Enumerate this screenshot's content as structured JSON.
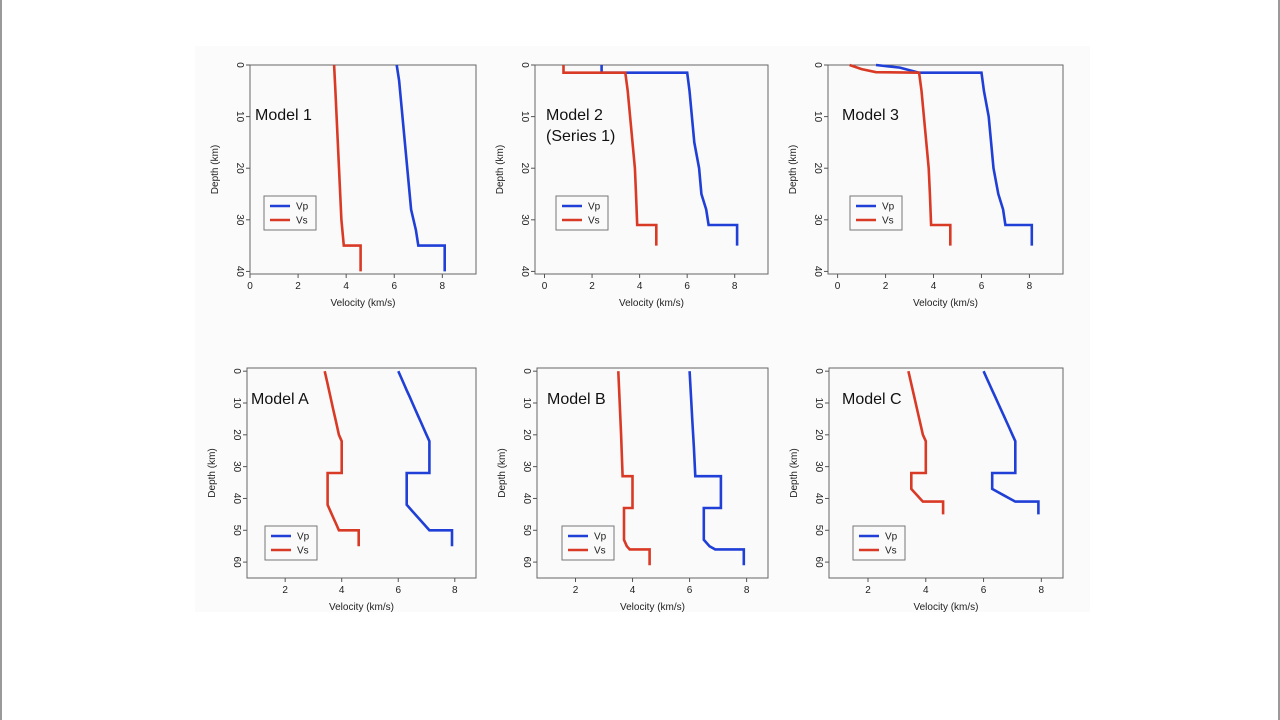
{
  "chart_data": [
    {
      "type": "line",
      "title": [
        "Model 1"
      ],
      "xlabel": "Velocity (km/s)",
      "ylabel": "Depth (km)",
      "xlim": [
        0,
        9.4
      ],
      "ylim": [
        0,
        40.5
      ],
      "xticks": [
        "0",
        "2",
        "4",
        "6",
        "8"
      ],
      "yticks": [
        "0",
        "10",
        "20",
        "30",
        "40"
      ],
      "legend": [
        "Vp",
        "Vs"
      ],
      "series": [
        {
          "name": "Vp",
          "color": "#1f3fd6",
          "points": [
            [
              6.1,
              0
            ],
            [
              6.2,
              3
            ],
            [
              6.3,
              8
            ],
            [
              6.4,
              13
            ],
            [
              6.5,
              18
            ],
            [
              6.6,
              23
            ],
            [
              6.7,
              28
            ],
            [
              6.9,
              32
            ],
            [
              7.0,
              35
            ],
            [
              8.1,
              35
            ],
            [
              8.1,
              40
            ]
          ]
        },
        {
          "name": "Vs",
          "color": "#d93a26",
          "points": [
            [
              3.5,
              0
            ],
            [
              3.55,
              5
            ],
            [
              3.6,
              10
            ],
            [
              3.65,
              15
            ],
            [
              3.7,
              20
            ],
            [
              3.75,
              25
            ],
            [
              3.8,
              30
            ],
            [
              3.9,
              35
            ],
            [
              4.6,
              35
            ],
            [
              4.6,
              40
            ]
          ]
        }
      ]
    },
    {
      "type": "line",
      "title": [
        "Model 2",
        "(Series 1)"
      ],
      "xlabel": "Velocity (km/s)",
      "ylabel": "Depth (km)",
      "xlim": [
        -0.4,
        9.4
      ],
      "ylim": [
        0,
        40.5
      ],
      "xticks": [
        "0",
        "2",
        "4",
        "6",
        "8"
      ],
      "yticks": [
        "0",
        "10",
        "20",
        "30",
        "40"
      ],
      "legend": [
        "Vp",
        "Vs"
      ],
      "series": [
        {
          "name": "Vp",
          "color": "#1f3fd6",
          "points": [
            [
              2.4,
              0
            ],
            [
              2.4,
              1.5
            ],
            [
              6.0,
              1.5
            ],
            [
              6.1,
              5
            ],
            [
              6.2,
              10
            ],
            [
              6.3,
              15
            ],
            [
              6.5,
              20
            ],
            [
              6.6,
              25
            ],
            [
              6.8,
              28
            ],
            [
              6.9,
              31
            ],
            [
              8.1,
              31
            ],
            [
              8.1,
              35
            ]
          ]
        },
        {
          "name": "Vs",
          "color": "#d93a26",
          "points": [
            [
              0.8,
              0
            ],
            [
              0.8,
              1.5
            ],
            [
              3.4,
              1.5
            ],
            [
              3.5,
              5
            ],
            [
              3.6,
              10
            ],
            [
              3.7,
              15
            ],
            [
              3.8,
              20
            ],
            [
              3.85,
              25
            ],
            [
              3.9,
              31
            ],
            [
              4.7,
              31
            ],
            [
              4.7,
              35
            ]
          ]
        }
      ]
    },
    {
      "type": "line",
      "title": [
        "Model 3"
      ],
      "xlabel": "Velocity (km/s)",
      "ylabel": "Depth (km)",
      "xlim": [
        -0.4,
        9.4
      ],
      "ylim": [
        0,
        40.5
      ],
      "xticks": [
        "0",
        "2",
        "4",
        "6",
        "8"
      ],
      "yticks": [
        "0",
        "10",
        "20",
        "30",
        "40"
      ],
      "legend": [
        "Vp",
        "Vs"
      ],
      "series": [
        {
          "name": "Vp",
          "color": "#1f3fd6",
          "points": [
            [
              1.6,
              0
            ],
            [
              2.6,
              0.5
            ],
            [
              3.4,
              1.5
            ],
            [
              6.0,
              1.5
            ],
            [
              6.1,
              5
            ],
            [
              6.3,
              10
            ],
            [
              6.4,
              15
            ],
            [
              6.5,
              20
            ],
            [
              6.7,
              25
            ],
            [
              6.9,
              28
            ],
            [
              7.0,
              31
            ],
            [
              8.1,
              31
            ],
            [
              8.1,
              35
            ]
          ]
        },
        {
          "name": "Vs",
          "color": "#d93a26",
          "points": [
            [
              0.5,
              0
            ],
            [
              1.0,
              0.8
            ],
            [
              1.6,
              1.4
            ],
            [
              3.4,
              1.5
            ],
            [
              3.5,
              5
            ],
            [
              3.6,
              10
            ],
            [
              3.7,
              15
            ],
            [
              3.8,
              20
            ],
            [
              3.85,
              25
            ],
            [
              3.9,
              31
            ],
            [
              4.7,
              31
            ],
            [
              4.7,
              35
            ]
          ]
        }
      ]
    },
    {
      "type": "line",
      "title": [
        "Model A"
      ],
      "xlabel": "Velocity (km/s)",
      "ylabel": "Depth (km)",
      "xlim": [
        0.65,
        8.75
      ],
      "ylim": [
        -1,
        65
      ],
      "xticks": [
        "2",
        "4",
        "6",
        "8"
      ],
      "yticks": [
        "0",
        "10",
        "20",
        "30",
        "40",
        "50",
        "60"
      ],
      "legend": [
        "Vp",
        "Vs"
      ],
      "series": [
        {
          "name": "Vp",
          "color": "#1f3fd6",
          "points": [
            [
              6.0,
              0
            ],
            [
              6.1,
              2
            ],
            [
              6.2,
              4
            ],
            [
              6.3,
              6
            ],
            [
              6.4,
              8
            ],
            [
              6.5,
              10
            ],
            [
              6.6,
              12
            ],
            [
              6.7,
              14
            ],
            [
              6.8,
              16
            ],
            [
              6.9,
              18
            ],
            [
              7.0,
              20
            ],
            [
              7.1,
              22
            ],
            [
              7.1,
              32
            ],
            [
              6.3,
              32
            ],
            [
              6.3,
              42
            ],
            [
              6.5,
              44
            ],
            [
              6.7,
              46
            ],
            [
              6.9,
              48
            ],
            [
              7.1,
              50
            ],
            [
              7.9,
              50
            ],
            [
              7.9,
              55
            ]
          ]
        },
        {
          "name": "Vs",
          "color": "#d93a26",
          "points": [
            [
              3.4,
              0
            ],
            [
              3.5,
              4
            ],
            [
              3.6,
              8
            ],
            [
              3.7,
              12
            ],
            [
              3.8,
              16
            ],
            [
              3.9,
              20
            ],
            [
              4.0,
              22
            ],
            [
              4.0,
              32
            ],
            [
              3.5,
              32
            ],
            [
              3.5,
              42
            ],
            [
              3.6,
              44
            ],
            [
              3.7,
              46
            ],
            [
              3.8,
              48
            ],
            [
              3.9,
              50
            ],
            [
              4.6,
              50
            ],
            [
              4.6,
              55
            ]
          ]
        }
      ]
    },
    {
      "type": "line",
      "title": [
        "Model B"
      ],
      "xlabel": "Velocity (km/s)",
      "ylabel": "Depth (km)",
      "xlim": [
        0.65,
        8.75
      ],
      "ylim": [
        -1,
        65
      ],
      "xticks": [
        "2",
        "4",
        "6",
        "8"
      ],
      "yticks": [
        "0",
        "10",
        "20",
        "30",
        "40",
        "50",
        "60"
      ],
      "legend": [
        "Vp",
        "Vs"
      ],
      "series": [
        {
          "name": "Vp",
          "color": "#1f3fd6",
          "points": [
            [
              6.0,
              0
            ],
            [
              6.05,
              8
            ],
            [
              6.1,
              16
            ],
            [
              6.15,
              24
            ],
            [
              6.2,
              33
            ],
            [
              7.1,
              33
            ],
            [
              7.1,
              43
            ],
            [
              6.5,
              43
            ],
            [
              6.5,
              53
            ],
            [
              6.7,
              55
            ],
            [
              6.9,
              56
            ],
            [
              7.9,
              56
            ],
            [
              7.9,
              61
            ]
          ]
        },
        {
          "name": "Vs",
          "color": "#d93a26",
          "points": [
            [
              3.5,
              0
            ],
            [
              3.55,
              10
            ],
            [
              3.6,
              20
            ],
            [
              3.65,
              33
            ],
            [
              4.0,
              33
            ],
            [
              4.0,
              43
            ],
            [
              3.7,
              43
            ],
            [
              3.7,
              53
            ],
            [
              3.8,
              55
            ],
            [
              3.9,
              56
            ],
            [
              4.6,
              56
            ],
            [
              4.6,
              61
            ]
          ]
        }
      ]
    },
    {
      "type": "line",
      "title": [
        "Model C"
      ],
      "xlabel": "Velocity (km/s)",
      "ylabel": "Depth (km)",
      "xlim": [
        0.65,
        8.75
      ],
      "ylim": [
        -1,
        65
      ],
      "xticks": [
        "2",
        "4",
        "6",
        "8"
      ],
      "yticks": [
        "0",
        "10",
        "20",
        "30",
        "40",
        "50",
        "60"
      ],
      "legend": [
        "Vp",
        "Vs"
      ],
      "series": [
        {
          "name": "Vp",
          "color": "#1f3fd6",
          "points": [
            [
              6.0,
              0
            ],
            [
              6.1,
              2
            ],
            [
              6.2,
              4
            ],
            [
              6.3,
              6
            ],
            [
              6.4,
              8
            ],
            [
              6.5,
              10
            ],
            [
              6.6,
              12
            ],
            [
              6.7,
              14
            ],
            [
              6.8,
              16
            ],
            [
              6.9,
              18
            ],
            [
              7.0,
              20
            ],
            [
              7.1,
              22
            ],
            [
              7.1,
              32
            ],
            [
              6.3,
              32
            ],
            [
              6.3,
              37
            ],
            [
              6.5,
              38
            ],
            [
              6.7,
              39
            ],
            [
              6.9,
              40
            ],
            [
              7.1,
              41
            ],
            [
              7.9,
              41
            ],
            [
              7.9,
              45
            ]
          ]
        },
        {
          "name": "Vs",
          "color": "#d93a26",
          "points": [
            [
              3.4,
              0
            ],
            [
              3.5,
              4
            ],
            [
              3.6,
              8
            ],
            [
              3.7,
              12
            ],
            [
              3.8,
              16
            ],
            [
              3.9,
              20
            ],
            [
              4.0,
              22
            ],
            [
              4.0,
              32
            ],
            [
              3.5,
              32
            ],
            [
              3.5,
              37
            ],
            [
              3.6,
              38
            ],
            [
              3.7,
              39
            ],
            [
              3.8,
              40
            ],
            [
              3.9,
              41
            ],
            [
              4.6,
              41
            ],
            [
              4.6,
              45
            ]
          ]
        }
      ]
    }
  ]
}
